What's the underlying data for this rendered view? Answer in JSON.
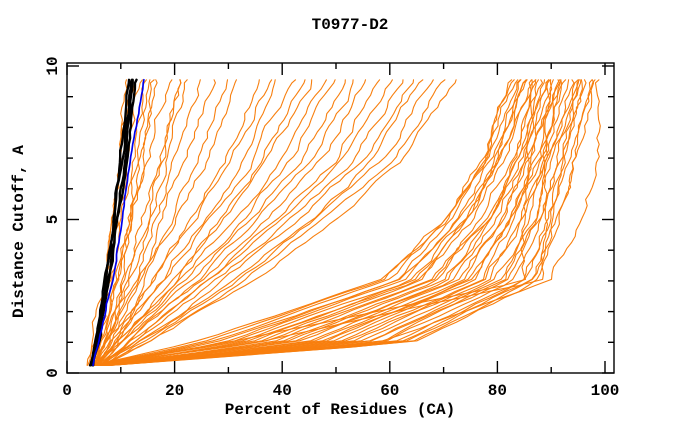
{
  "chart_data": {
    "type": "line",
    "title": "T0977-D2",
    "xlabel": "Percent of Residues (CA)",
    "ylabel": "Distance Cutoff, A",
    "xlim": [
      0,
      100
    ],
    "ylim": [
      0,
      10
    ],
    "x_major_ticks": [
      0,
      20,
      40,
      60,
      80,
      100
    ],
    "x_minor_step": 10,
    "y_major_ticks": [
      0,
      5,
      10
    ],
    "y_minor_step": 1,
    "grid": false,
    "legend": "none",
    "axis_color": "#000000",
    "background": "#ffffff",
    "curve_y_levels": [
      0.25,
      1,
      3,
      5,
      7,
      9.55
    ],
    "series": [
      {
        "name": "orange-model-curves",
        "color": "#f87f0e",
        "line_width": 1.1,
        "jitter": 0.45,
        "curves": [
          [
            4.1,
            5.0,
            6.9,
            8.4,
            9.6,
            10.8
          ],
          [
            4.2,
            5.3,
            7.3,
            9.0,
            10.5,
            12.2
          ],
          [
            4.2,
            5.5,
            7.8,
            9.6,
            11.4,
            13.4
          ],
          [
            4.4,
            5.8,
            8.3,
            10.4,
            12.4,
            14.6
          ],
          [
            4.6,
            6.1,
            8.8,
            11.0,
            13.3,
            15.8
          ],
          [
            4.8,
            6.4,
            9.3,
            11.8,
            14.3,
            17.2
          ],
          [
            5.0,
            6.8,
            10.0,
            12.8,
            15.5,
            18.8
          ],
          [
            5.2,
            7.2,
            10.8,
            13.9,
            17.0,
            20.6
          ],
          [
            5.4,
            7.6,
            11.6,
            15.1,
            18.6,
            22.6
          ],
          [
            5.6,
            8.0,
            12.5,
            16.4,
            20.3,
            24.8
          ],
          [
            5.8,
            8.5,
            13.5,
            17.9,
            22.2,
            27.2
          ],
          [
            6.0,
            9.0,
            14.6,
            19.5,
            24.3,
            29.8
          ],
          [
            5.1,
            7.0,
            11.0,
            14.5,
            18.0,
            21.5
          ],
          [
            4.7,
            6.3,
            9.0,
            11.3,
            13.7,
            16.3
          ],
          [
            5.0,
            7.5,
            14.0,
            20.0,
            26.0,
            32.0
          ],
          [
            5.2,
            8.0,
            15.5,
            22.5,
            29.5,
            36.0
          ],
          [
            5.4,
            8.6,
            17.0,
            25.0,
            33.0,
            40.0
          ],
          [
            5.6,
            9.2,
            19.0,
            28.0,
            36.5,
            44.0
          ],
          [
            5.8,
            9.9,
            21.0,
            31.0,
            40.0,
            48.0
          ],
          [
            6.0,
            10.6,
            23.0,
            34.0,
            44.0,
            52.0
          ],
          [
            6.2,
            11.4,
            25.0,
            37.0,
            48.0,
            56.0
          ],
          [
            6.4,
            12.2,
            27.0,
            40.0,
            52.0,
            60.0
          ],
          [
            6.6,
            13.1,
            29.0,
            43.0,
            55.5,
            64.0
          ],
          [
            6.8,
            14.0,
            31.5,
            46.0,
            59.0,
            68.0
          ],
          [
            5.5,
            9.0,
            18.0,
            26.5,
            34.5,
            42.0
          ],
          [
            5.9,
            10.2,
            22.0,
            32.5,
            42.0,
            50.0
          ],
          [
            6.3,
            11.8,
            26.0,
            38.5,
            50.0,
            58.0
          ],
          [
            6.7,
            13.5,
            30.5,
            45.0,
            57.5,
            66.0
          ],
          [
            5.3,
            8.3,
            16.0,
            23.5,
            31.0,
            38.0
          ],
          [
            6.1,
            11.0,
            24.0,
            35.5,
            46.0,
            54.0
          ],
          [
            6.5,
            12.6,
            28.0,
            41.5,
            53.5,
            62.0
          ],
          [
            6.9,
            14.6,
            33.0,
            48.0,
            61.0,
            70.0
          ],
          [
            5.7,
            9.6,
            20.0,
            29.5,
            38.0,
            46.0
          ],
          [
            7.0,
            15.2,
            34.5,
            50.0,
            63.0,
            72.0
          ],
          [
            5.0,
            24.0,
            58.0,
            70.0,
            77.0,
            82.5
          ],
          [
            5.1,
            25.3,
            58.9,
            70.7,
            77.5,
            83.0
          ],
          [
            5.2,
            26.5,
            59.8,
            71.3,
            78.1,
            83.4
          ],
          [
            5.3,
            27.8,
            60.7,
            72.0,
            78.6,
            83.9
          ],
          [
            5.4,
            29.0,
            61.6,
            72.6,
            79.1,
            84.4
          ],
          [
            5.5,
            30.3,
            62.5,
            73.3,
            79.7,
            84.9
          ],
          [
            5.5,
            31.5,
            63.4,
            74.0,
            80.2,
            85.3
          ],
          [
            5.6,
            32.8,
            64.3,
            74.6,
            80.7,
            85.8
          ],
          [
            5.7,
            34.0,
            65.2,
            75.3,
            81.2,
            86.3
          ],
          [
            5.8,
            35.3,
            66.1,
            75.9,
            81.8,
            86.7
          ],
          [
            5.9,
            36.5,
            67.0,
            76.6,
            82.3,
            87.2
          ],
          [
            6.0,
            37.8,
            67.9,
            77.3,
            82.8,
            87.7
          ],
          [
            6.1,
            39.0,
            68.8,
            77.9,
            83.4,
            88.1
          ],
          [
            6.2,
            40.3,
            69.7,
            78.6,
            83.9,
            88.6
          ],
          [
            6.3,
            41.5,
            70.6,
            79.2,
            84.4,
            89.1
          ],
          [
            6.4,
            42.8,
            71.5,
            79.9,
            85.0,
            89.6
          ],
          [
            6.4,
            44.0,
            72.4,
            80.6,
            85.5,
            90.0
          ],
          [
            6.5,
            45.3,
            73.3,
            81.2,
            86.0,
            90.5
          ],
          [
            6.6,
            46.5,
            74.2,
            81.9,
            86.5,
            91.0
          ],
          [
            6.7,
            47.8,
            75.1,
            82.5,
            87.1,
            91.4
          ],
          [
            6.8,
            49.0,
            76.0,
            83.2,
            87.6,
            91.9
          ],
          [
            6.9,
            50.3,
            76.9,
            83.9,
            88.1,
            92.4
          ],
          [
            7.0,
            51.5,
            77.8,
            84.5,
            88.7,
            92.8
          ],
          [
            7.1,
            52.8,
            78.7,
            85.2,
            89.2,
            93.3
          ],
          [
            7.2,
            54.0,
            79.6,
            85.8,
            89.7,
            93.8
          ],
          [
            7.3,
            55.3,
            80.5,
            86.5,
            90.3,
            94.3
          ],
          [
            7.3,
            56.5,
            81.4,
            87.2,
            90.8,
            94.7
          ],
          [
            7.4,
            57.8,
            82.3,
            87.8,
            91.3,
            95.2
          ],
          [
            7.5,
            59.0,
            83.2,
            88.5,
            91.8,
            95.7
          ],
          [
            7.6,
            60.3,
            84.1,
            89.1,
            92.4,
            96.1
          ],
          [
            7.7,
            61.5,
            85.0,
            89.8,
            92.9,
            96.6
          ],
          [
            7.8,
            62.8,
            85.9,
            90.5,
            93.4,
            97.1
          ],
          [
            7.9,
            64.0,
            86.8,
            91.1,
            94.0,
            97.5
          ],
          [
            8.0,
            65.3,
            87.7,
            91.8,
            94.5,
            98.0
          ],
          [
            6.0,
            30.0,
            84.5,
            85.2,
            85.8,
            86.5
          ],
          [
            6.5,
            35.0,
            88.0,
            88.5,
            89.0,
            89.5
          ],
          [
            7.5,
            58.0,
            90.0,
            95.5,
            98.3,
            99.3
          ]
        ]
      },
      {
        "name": "black-model-curves",
        "color": "#000000",
        "line_width": 2.4,
        "jitter": 0.16,
        "curves": [
          [
            4.3,
            5.2,
            7.0,
            8.6,
            10.0,
            11.6
          ],
          [
            4.5,
            5.4,
            7.3,
            8.9,
            10.4,
            12.0
          ],
          [
            4.6,
            5.6,
            7.5,
            9.2,
            10.8,
            12.4
          ],
          [
            4.8,
            5.8,
            7.7,
            9.5,
            11.2,
            12.9
          ]
        ]
      },
      {
        "name": "blue-model-curve",
        "color": "#0000ee",
        "line_width": 1.7,
        "jitter": 0.13,
        "curves": [
          [
            4.9,
            6.0,
            8.2,
            10.2,
            11.8,
            14.2
          ]
        ]
      }
    ]
  }
}
